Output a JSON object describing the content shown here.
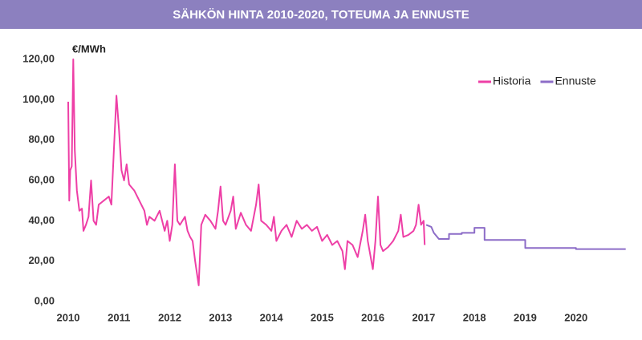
{
  "chart_data": {
    "type": "line",
    "title": "SÄHKÖN HINTA 2010-2020, TOTEUMA JA ENNUSTE",
    "y_label": "€/MWh",
    "xlim": [
      2010,
      2021
    ],
    "xticks": [
      2010,
      2011,
      2012,
      2013,
      2014,
      2015,
      2016,
      2017,
      2018,
      2019,
      2020
    ],
    "ylim": [
      0,
      120
    ],
    "yticks": [
      {
        "value": 0,
        "label": "0,00"
      },
      {
        "value": 20,
        "label": "20,00"
      },
      {
        "value": 40,
        "label": "40,00"
      },
      {
        "value": 60,
        "label": "60,00"
      },
      {
        "value": 80,
        "label": "80,00"
      },
      {
        "value": 100,
        "label": "100,00"
      },
      {
        "value": 120,
        "label": "120,00"
      }
    ],
    "grid": false,
    "legend": "top-right",
    "series": [
      {
        "name": "Historia",
        "color": "#ee3fa6",
        "x": [
          2010.0,
          2010.02,
          2010.04,
          2010.07,
          2010.1,
          2010.13,
          2010.17,
          2010.22,
          2010.27,
          2010.3,
          2010.35,
          2010.4,
          2010.45,
          2010.5,
          2010.55,
          2010.6,
          2010.7,
          2010.8,
          2010.85,
          2010.9,
          2010.95,
          2011.0,
          2011.05,
          2011.1,
          2011.15,
          2011.2,
          2011.3,
          2011.4,
          2011.5,
          2011.55,
          2011.6,
          2011.7,
          2011.8,
          2011.9,
          2011.95,
          2012.0,
          2012.05,
          2012.1,
          2012.15,
          2012.2,
          2012.3,
          2012.35,
          2012.4,
          2012.45,
          2012.5,
          2012.57,
          2012.62,
          2012.7,
          2012.8,
          2012.9,
          2012.95,
          2013.0,
          2013.05,
          2013.1,
          2013.2,
          2013.25,
          2013.3,
          2013.4,
          2013.5,
          2013.6,
          2013.7,
          2013.75,
          2013.8,
          2013.9,
          2014.0,
          2014.05,
          2014.1,
          2014.2,
          2014.3,
          2014.4,
          2014.5,
          2014.6,
          2014.7,
          2014.8,
          2014.9,
          2015.0,
          2015.1,
          2015.2,
          2015.3,
          2015.4,
          2015.45,
          2015.5,
          2015.6,
          2015.7,
          2015.8,
          2015.85,
          2015.9,
          2016.0,
          2016.05,
          2016.1,
          2016.15,
          2016.2,
          2016.3,
          2016.4,
          2016.5,
          2016.55,
          2016.6,
          2016.7,
          2016.8,
          2016.85,
          2016.9,
          2016.95,
          2017.0,
          2017.02
        ],
        "values": [
          99,
          50,
          65,
          67,
          120,
          75,
          55,
          45,
          46,
          35,
          38,
          42,
          60,
          40,
          38,
          48,
          50,
          52,
          48,
          75,
          102,
          85,
          65,
          60,
          68,
          58,
          55,
          50,
          45,
          38,
          42,
          40,
          45,
          35,
          40,
          30,
          38,
          68,
          40,
          38,
          42,
          35,
          32,
          30,
          20,
          8,
          38,
          43,
          40,
          36,
          45,
          57,
          40,
          38,
          45,
          52,
          36,
          44,
          38,
          35,
          48,
          58,
          40,
          38,
          35,
          42,
          30,
          35,
          38,
          32,
          40,
          36,
          38,
          35,
          37,
          30,
          33,
          28,
          30,
          25,
          16,
          30,
          28,
          22,
          35,
          43,
          30,
          16,
          30,
          52,
          28,
          25,
          27,
          30,
          35,
          43,
          32,
          33,
          35,
          38,
          48,
          38,
          40,
          28
        ]
      },
      {
        "name": "Ennuste",
        "color": "#8c6cc7",
        "x": [
          2017.05,
          2017.15,
          2017.2,
          2017.3,
          2017.5,
          2017.5,
          2017.75,
          2017.75,
          2018.0,
          2018.0,
          2018.2,
          2018.2,
          2019.0,
          2019.0,
          2020.0,
          2020.0,
          2020.98
        ],
        "values": [
          38,
          37,
          34,
          31,
          31,
          33.5,
          33.5,
          34,
          34,
          36.5,
          36.5,
          30.5,
          30.5,
          26.5,
          26.5,
          26,
          26
        ]
      }
    ]
  }
}
